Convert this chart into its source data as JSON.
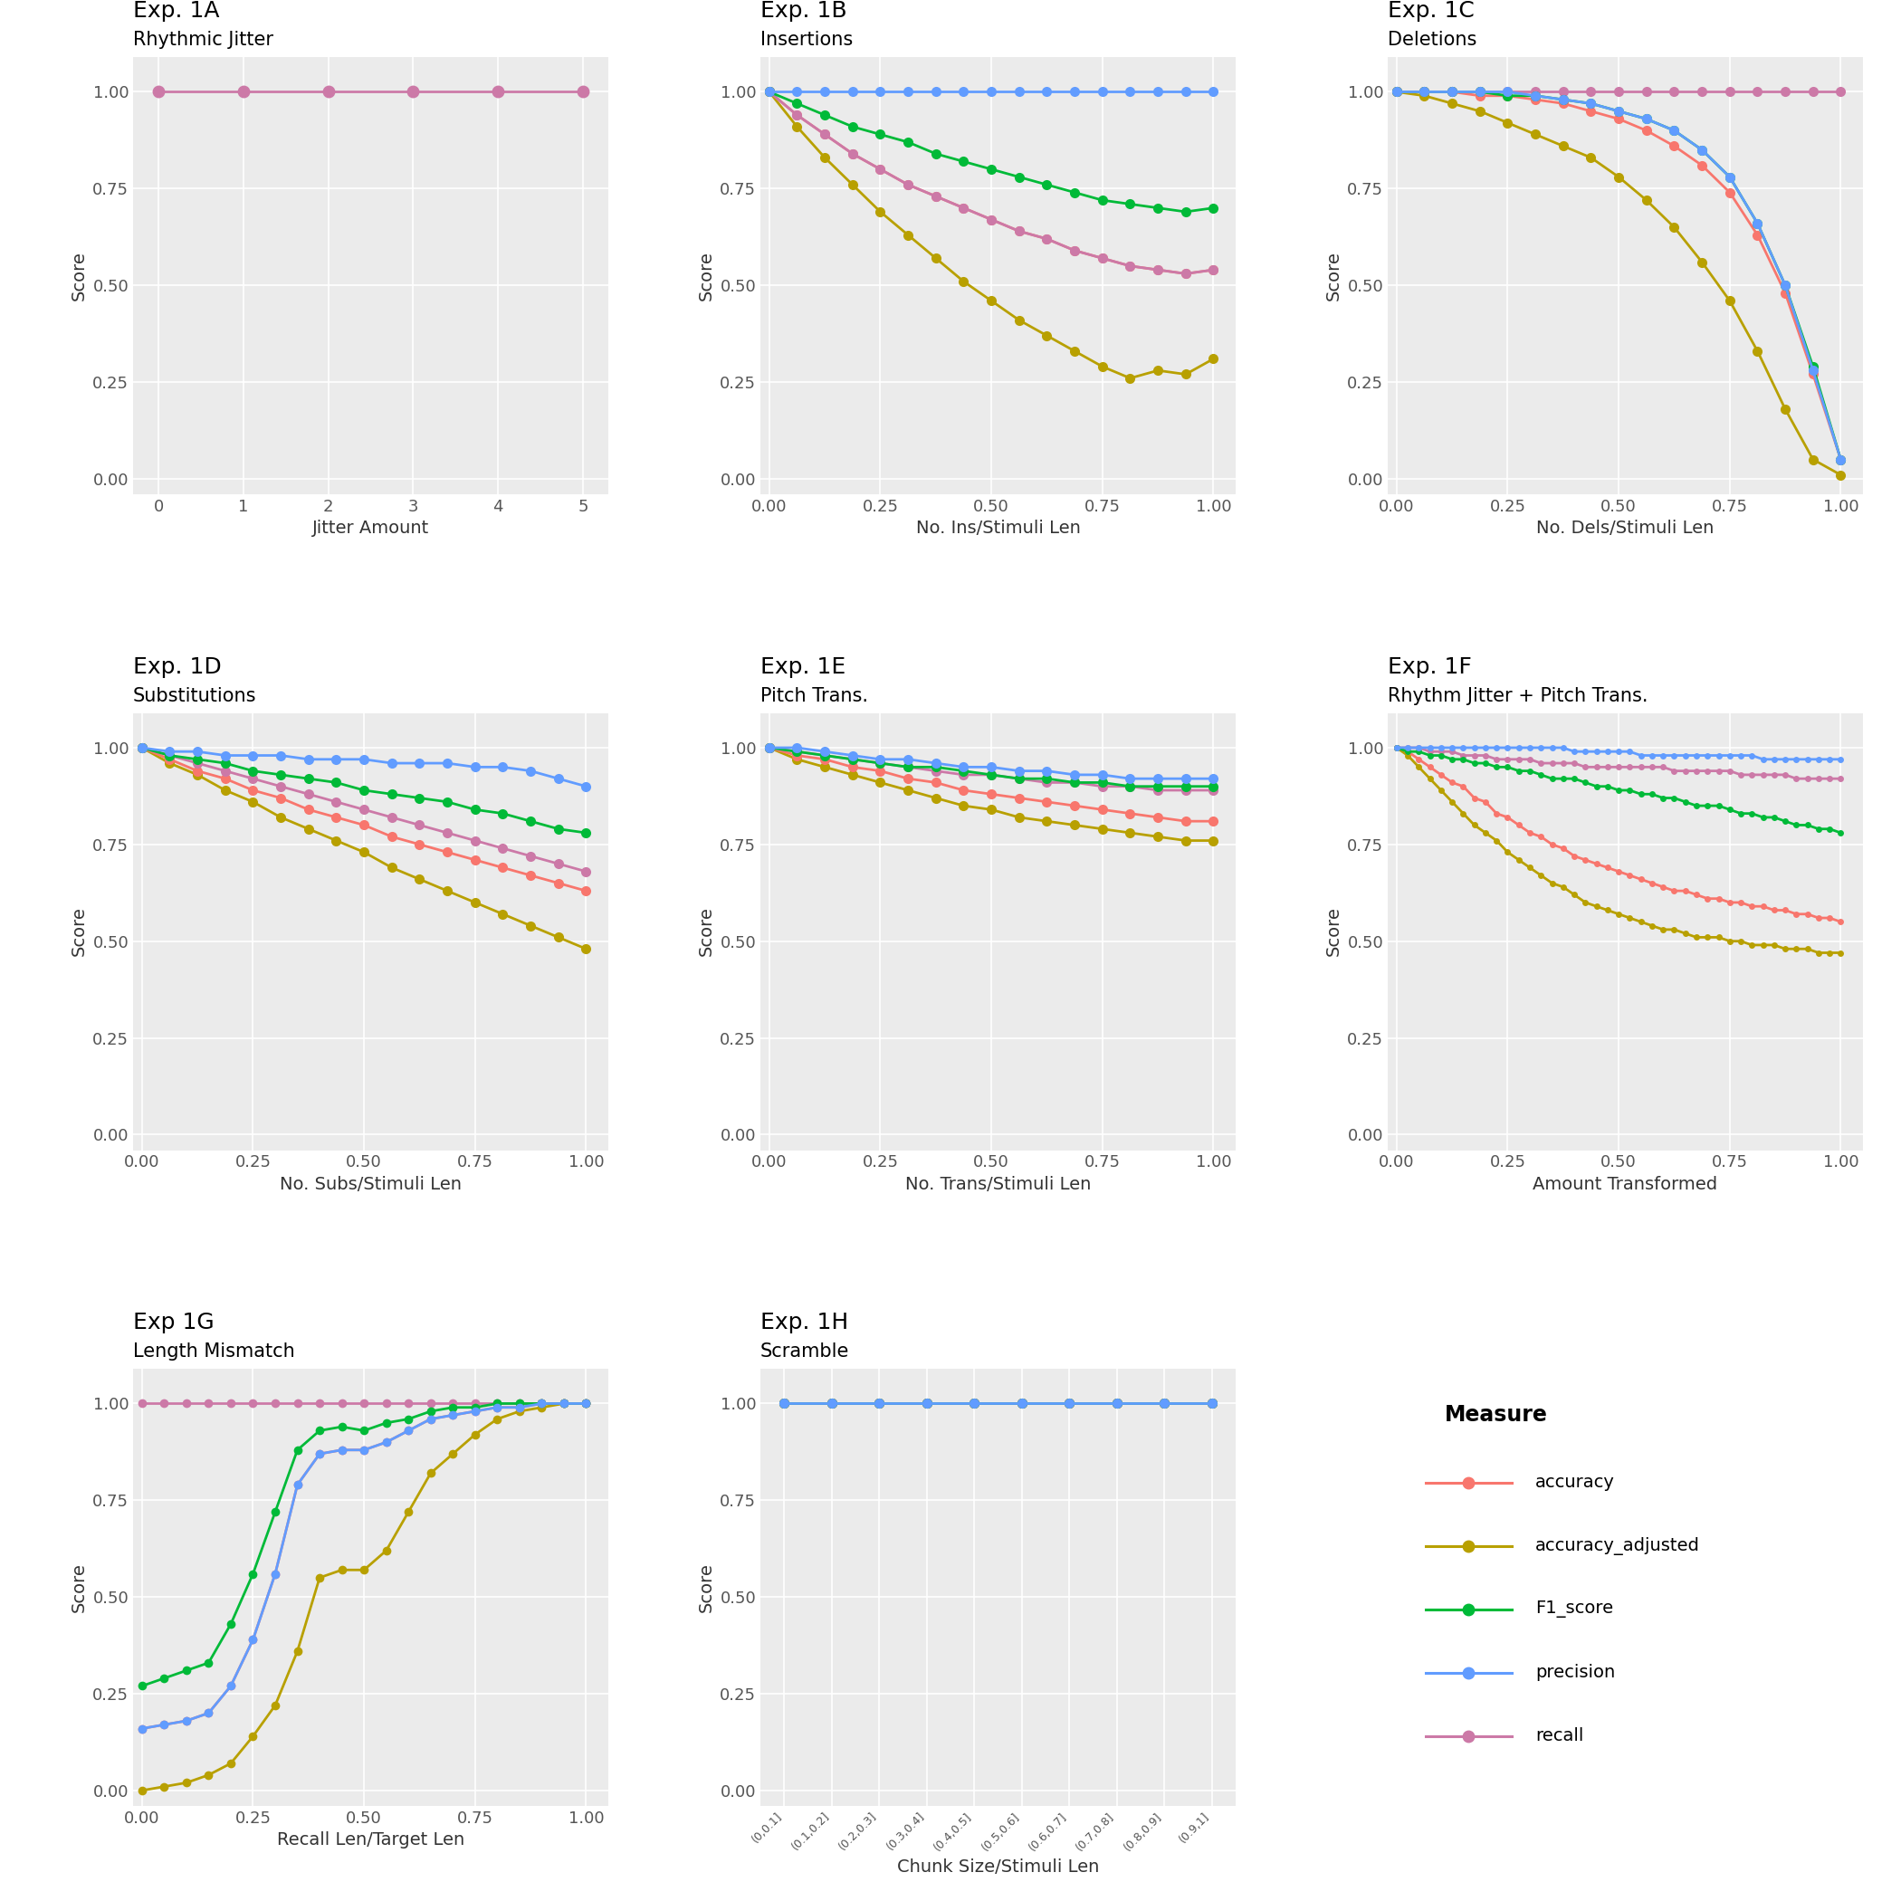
{
  "colors": {
    "accuracy": "#F8766D",
    "accuracy_adjusted": "#B8A000",
    "F1_score": "#00BA38",
    "precision": "#619CFF",
    "recall": "#CC79A7"
  },
  "background": "#EBEBEB",
  "grid_color": "white",
  "subplot_titles": [
    "Exp. 1A",
    "Exp. 1B",
    "Exp. 1C",
    "Exp. 1D",
    "Exp. 1E",
    "Exp. 1F",
    "Exp 1G",
    "Exp. 1H"
  ],
  "subplot_subtitles": [
    "Rhythmic Jitter",
    "Insertions",
    "Deletions",
    "Substitutions",
    "Pitch Trans.",
    "Rhythm Jitter + Pitch Trans.",
    "Length Mismatch",
    "Scramble"
  ],
  "xlabels": [
    "Jitter Amount",
    "No. Ins/Stimuli Len",
    "No. Dels/Stimuli Len",
    "No. Subs/Stimuli Len",
    "No. Trans/Stimuli Len",
    "Amount Transformed",
    "Recall Len/Target Len",
    "Chunk Size/Stimuli Len"
  ],
  "exp1A": {
    "x": [
      0,
      1,
      2,
      3,
      4,
      5
    ],
    "recall": [
      1.0,
      1.0,
      1.0,
      1.0,
      1.0,
      1.0
    ]
  },
  "exp1B": {
    "x": [
      0.0,
      0.0625,
      0.125,
      0.1875,
      0.25,
      0.3125,
      0.375,
      0.4375,
      0.5,
      0.5625,
      0.625,
      0.6875,
      0.75,
      0.8125,
      0.875,
      0.9375,
      1.0
    ],
    "precision": [
      1.0,
      1.0,
      1.0,
      1.0,
      1.0,
      1.0,
      1.0,
      1.0,
      1.0,
      1.0,
      1.0,
      1.0,
      1.0,
      1.0,
      1.0,
      1.0,
      1.0
    ],
    "recall": [
      1.0,
      0.94,
      0.89,
      0.84,
      0.8,
      0.76,
      0.73,
      0.7,
      0.67,
      0.64,
      0.62,
      0.59,
      0.57,
      0.55,
      0.54,
      0.53,
      0.54
    ],
    "F1_score": [
      1.0,
      0.97,
      0.94,
      0.91,
      0.89,
      0.87,
      0.84,
      0.82,
      0.8,
      0.78,
      0.76,
      0.74,
      0.72,
      0.71,
      0.7,
      0.69,
      0.7
    ],
    "accuracy": [
      1.0,
      0.94,
      0.89,
      0.84,
      0.8,
      0.76,
      0.73,
      0.7,
      0.67,
      0.64,
      0.62,
      0.59,
      0.57,
      0.55,
      0.54,
      0.53,
      0.54
    ],
    "accuracy_adjusted": [
      1.0,
      0.91,
      0.83,
      0.76,
      0.69,
      0.63,
      0.57,
      0.51,
      0.46,
      0.41,
      0.37,
      0.33,
      0.29,
      0.26,
      0.28,
      0.27,
      0.31
    ]
  },
  "exp1C": {
    "x": [
      0.0,
      0.0625,
      0.125,
      0.1875,
      0.25,
      0.3125,
      0.375,
      0.4375,
      0.5,
      0.5625,
      0.625,
      0.6875,
      0.75,
      0.8125,
      0.875,
      0.9375,
      1.0
    ],
    "recall": [
      1.0,
      1.0,
      1.0,
      1.0,
      1.0,
      1.0,
      1.0,
      1.0,
      1.0,
      1.0,
      1.0,
      1.0,
      1.0,
      1.0,
      1.0,
      1.0,
      1.0
    ],
    "precision": [
      1.0,
      1.0,
      1.0,
      1.0,
      1.0,
      0.99,
      0.98,
      0.97,
      0.95,
      0.93,
      0.9,
      0.85,
      0.78,
      0.66,
      0.5,
      0.28,
      0.05
    ],
    "F1_score": [
      1.0,
      1.0,
      1.0,
      1.0,
      0.99,
      0.99,
      0.98,
      0.97,
      0.95,
      0.93,
      0.9,
      0.85,
      0.78,
      0.66,
      0.5,
      0.29,
      0.05
    ],
    "accuracy": [
      1.0,
      1.0,
      1.0,
      0.99,
      0.99,
      0.98,
      0.97,
      0.95,
      0.93,
      0.9,
      0.86,
      0.81,
      0.74,
      0.63,
      0.48,
      0.27,
      0.05
    ],
    "accuracy_adjusted": [
      1.0,
      0.99,
      0.97,
      0.95,
      0.92,
      0.89,
      0.86,
      0.83,
      0.78,
      0.72,
      0.65,
      0.56,
      0.46,
      0.33,
      0.18,
      0.05,
      0.01
    ]
  },
  "exp1D": {
    "x": [
      0.0,
      0.0625,
      0.125,
      0.1875,
      0.25,
      0.3125,
      0.375,
      0.4375,
      0.5,
      0.5625,
      0.625,
      0.6875,
      0.75,
      0.8125,
      0.875,
      0.9375,
      1.0
    ],
    "precision": [
      1.0,
      0.99,
      0.99,
      0.98,
      0.98,
      0.98,
      0.97,
      0.97,
      0.97,
      0.96,
      0.96,
      0.96,
      0.95,
      0.95,
      0.94,
      0.92,
      0.9
    ],
    "recall": [
      1.0,
      0.98,
      0.96,
      0.94,
      0.92,
      0.9,
      0.88,
      0.86,
      0.84,
      0.82,
      0.8,
      0.78,
      0.76,
      0.74,
      0.72,
      0.7,
      0.68
    ],
    "F1_score": [
      1.0,
      0.98,
      0.97,
      0.96,
      0.94,
      0.93,
      0.92,
      0.91,
      0.89,
      0.88,
      0.87,
      0.86,
      0.84,
      0.83,
      0.81,
      0.79,
      0.78
    ],
    "accuracy": [
      1.0,
      0.97,
      0.94,
      0.92,
      0.89,
      0.87,
      0.84,
      0.82,
      0.8,
      0.77,
      0.75,
      0.73,
      0.71,
      0.69,
      0.67,
      0.65,
      0.63
    ],
    "accuracy_adjusted": [
      1.0,
      0.96,
      0.93,
      0.89,
      0.86,
      0.82,
      0.79,
      0.76,
      0.73,
      0.69,
      0.66,
      0.63,
      0.6,
      0.57,
      0.54,
      0.51,
      0.48
    ]
  },
  "exp1E": {
    "x": [
      0.0,
      0.0625,
      0.125,
      0.1875,
      0.25,
      0.3125,
      0.375,
      0.4375,
      0.5,
      0.5625,
      0.625,
      0.6875,
      0.75,
      0.8125,
      0.875,
      0.9375,
      1.0
    ],
    "precision": [
      1.0,
      1.0,
      0.99,
      0.98,
      0.97,
      0.97,
      0.96,
      0.95,
      0.95,
      0.94,
      0.94,
      0.93,
      0.93,
      0.92,
      0.92,
      0.92,
      0.92
    ],
    "recall": [
      1.0,
      0.99,
      0.98,
      0.97,
      0.96,
      0.95,
      0.94,
      0.93,
      0.93,
      0.92,
      0.91,
      0.91,
      0.9,
      0.9,
      0.89,
      0.89,
      0.89
    ],
    "F1_score": [
      1.0,
      0.99,
      0.98,
      0.97,
      0.96,
      0.95,
      0.95,
      0.94,
      0.93,
      0.92,
      0.92,
      0.91,
      0.91,
      0.9,
      0.9,
      0.9,
      0.9
    ],
    "accuracy": [
      1.0,
      0.98,
      0.97,
      0.95,
      0.94,
      0.92,
      0.91,
      0.89,
      0.88,
      0.87,
      0.86,
      0.85,
      0.84,
      0.83,
      0.82,
      0.81,
      0.81
    ],
    "accuracy_adjusted": [
      1.0,
      0.97,
      0.95,
      0.93,
      0.91,
      0.89,
      0.87,
      0.85,
      0.84,
      0.82,
      0.81,
      0.8,
      0.79,
      0.78,
      0.77,
      0.76,
      0.76
    ]
  },
  "exp1F": {
    "x": [
      0.0,
      0.025,
      0.05,
      0.075,
      0.1,
      0.125,
      0.15,
      0.175,
      0.2,
      0.225,
      0.25,
      0.275,
      0.3,
      0.325,
      0.35,
      0.375,
      0.4,
      0.425,
      0.45,
      0.475,
      0.5,
      0.525,
      0.55,
      0.575,
      0.6,
      0.625,
      0.65,
      0.675,
      0.7,
      0.725,
      0.75,
      0.775,
      0.8,
      0.825,
      0.85,
      0.875,
      0.9,
      0.925,
      0.95,
      0.975,
      1.0
    ],
    "precision": [
      1.0,
      1.0,
      1.0,
      1.0,
      1.0,
      1.0,
      1.0,
      1.0,
      1.0,
      1.0,
      1.0,
      1.0,
      1.0,
      1.0,
      1.0,
      1.0,
      0.99,
      0.99,
      0.99,
      0.99,
      0.99,
      0.99,
      0.98,
      0.98,
      0.98,
      0.98,
      0.98,
      0.98,
      0.98,
      0.98,
      0.98,
      0.98,
      0.98,
      0.97,
      0.97,
      0.97,
      0.97,
      0.97,
      0.97,
      0.97,
      0.97
    ],
    "recall": [
      1.0,
      1.0,
      1.0,
      0.99,
      0.99,
      0.99,
      0.98,
      0.98,
      0.98,
      0.97,
      0.97,
      0.97,
      0.97,
      0.96,
      0.96,
      0.96,
      0.96,
      0.95,
      0.95,
      0.95,
      0.95,
      0.95,
      0.95,
      0.95,
      0.95,
      0.94,
      0.94,
      0.94,
      0.94,
      0.94,
      0.94,
      0.93,
      0.93,
      0.93,
      0.93,
      0.93,
      0.92,
      0.92,
      0.92,
      0.92,
      0.92
    ],
    "F1_score": [
      1.0,
      0.99,
      0.99,
      0.98,
      0.98,
      0.97,
      0.97,
      0.96,
      0.96,
      0.95,
      0.95,
      0.94,
      0.94,
      0.93,
      0.92,
      0.92,
      0.92,
      0.91,
      0.9,
      0.9,
      0.89,
      0.89,
      0.88,
      0.88,
      0.87,
      0.87,
      0.86,
      0.85,
      0.85,
      0.85,
      0.84,
      0.83,
      0.83,
      0.82,
      0.82,
      0.81,
      0.8,
      0.8,
      0.79,
      0.79,
      0.78
    ],
    "accuracy": [
      1.0,
      0.99,
      0.97,
      0.95,
      0.93,
      0.91,
      0.9,
      0.87,
      0.86,
      0.83,
      0.82,
      0.8,
      0.78,
      0.77,
      0.75,
      0.74,
      0.72,
      0.71,
      0.7,
      0.69,
      0.68,
      0.67,
      0.66,
      0.65,
      0.64,
      0.63,
      0.63,
      0.62,
      0.61,
      0.61,
      0.6,
      0.6,
      0.59,
      0.59,
      0.58,
      0.58,
      0.57,
      0.57,
      0.56,
      0.56,
      0.55
    ],
    "accuracy_adjusted": [
      1.0,
      0.98,
      0.95,
      0.92,
      0.89,
      0.86,
      0.83,
      0.8,
      0.78,
      0.76,
      0.73,
      0.71,
      0.69,
      0.67,
      0.65,
      0.64,
      0.62,
      0.6,
      0.59,
      0.58,
      0.57,
      0.56,
      0.55,
      0.54,
      0.53,
      0.53,
      0.52,
      0.51,
      0.51,
      0.51,
      0.5,
      0.5,
      0.49,
      0.49,
      0.49,
      0.48,
      0.48,
      0.48,
      0.47,
      0.47,
      0.47
    ]
  },
  "exp1G": {
    "x": [
      0.0,
      0.05,
      0.1,
      0.15,
      0.2,
      0.25,
      0.3,
      0.35,
      0.4,
      0.45,
      0.5,
      0.55,
      0.6,
      0.65,
      0.7,
      0.75,
      0.8,
      0.85,
      0.9,
      0.95,
      1.0
    ],
    "recall": [
      1.0,
      1.0,
      1.0,
      1.0,
      1.0,
      1.0,
      1.0,
      1.0,
      1.0,
      1.0,
      1.0,
      1.0,
      1.0,
      1.0,
      1.0,
      1.0,
      1.0,
      1.0,
      1.0,
      1.0,
      1.0
    ],
    "precision": [
      0.16,
      0.17,
      0.18,
      0.2,
      0.27,
      0.39,
      0.56,
      0.79,
      0.87,
      0.88,
      0.88,
      0.9,
      0.93,
      0.96,
      0.97,
      0.98,
      0.99,
      0.99,
      1.0,
      1.0,
      1.0
    ],
    "F1_score": [
      0.27,
      0.29,
      0.31,
      0.33,
      0.43,
      0.56,
      0.72,
      0.88,
      0.93,
      0.94,
      0.93,
      0.95,
      0.96,
      0.98,
      0.99,
      0.99,
      1.0,
      1.0,
      1.0,
      1.0,
      1.0
    ],
    "accuracy": [
      0.16,
      0.17,
      0.18,
      0.2,
      0.27,
      0.39,
      0.56,
      0.79,
      0.87,
      0.88,
      0.88,
      0.9,
      0.93,
      0.96,
      0.97,
      0.98,
      0.99,
      0.99,
      1.0,
      1.0,
      1.0
    ],
    "accuracy_adjusted": [
      0.0,
      0.01,
      0.02,
      0.04,
      0.07,
      0.14,
      0.22,
      0.36,
      0.55,
      0.57,
      0.57,
      0.62,
      0.72,
      0.82,
      0.87,
      0.92,
      0.96,
      0.98,
      0.99,
      1.0,
      1.0
    ]
  },
  "exp1H": {
    "x_labels": [
      "(0,0.1]",
      "(0.1,0.2]",
      "(0.2,0.3]",
      "(0.3,0.4]",
      "(0.4,0.5]",
      "(0.5,0.6]",
      "(0.6,0.7]",
      "(0.7,0.8]",
      "(0.8,0.9]",
      "(0.9,1]"
    ],
    "x": [
      0,
      1,
      2,
      3,
      4,
      5,
      6,
      7,
      8,
      9
    ],
    "recall": [
      1.0,
      1.0,
      1.0,
      1.0,
      1.0,
      1.0,
      1.0,
      1.0,
      1.0,
      1.0
    ],
    "precision": [
      1.0,
      1.0,
      1.0,
      1.0,
      1.0,
      1.0,
      1.0,
      1.0,
      1.0,
      1.0
    ],
    "F1_score": [
      1.0,
      1.0,
      1.0,
      1.0,
      1.0,
      1.0,
      1.0,
      1.0,
      1.0,
      1.0
    ],
    "accuracy": [
      1.0,
      1.0,
      1.0,
      1.0,
      1.0,
      1.0,
      1.0,
      1.0,
      1.0,
      1.0
    ],
    "accuracy_adjusted": [
      1.0,
      1.0,
      1.0,
      1.0,
      1.0,
      1.0,
      1.0,
      1.0,
      1.0,
      1.0
    ]
  }
}
